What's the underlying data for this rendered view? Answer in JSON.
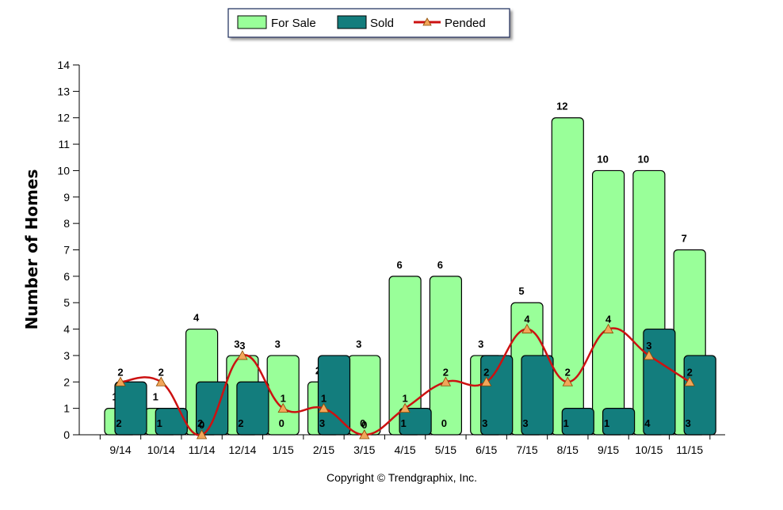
{
  "chart_data": {
    "type": "bar",
    "title": "",
    "xlabel": "",
    "ylabel": "Number of Homes",
    "ylim": [
      0,
      14
    ],
    "yticks": [
      0,
      1,
      2,
      3,
      4,
      5,
      6,
      7,
      8,
      9,
      10,
      11,
      12,
      13,
      14
    ],
    "grid": false,
    "legend_position": "top-center",
    "categories": [
      "9/14",
      "10/14",
      "11/14",
      "12/14",
      "1/15",
      "2/15",
      "3/15",
      "4/15",
      "5/15",
      "6/15",
      "7/15",
      "8/15",
      "9/15",
      "10/15",
      "11/15"
    ],
    "series": [
      {
        "name": "For Sale",
        "type": "bar",
        "values": [
          1,
          1,
          4,
          3,
          3,
          2,
          3,
          6,
          6,
          3,
          5,
          12,
          10,
          10,
          7
        ]
      },
      {
        "name": "Sold",
        "type": "bar",
        "values": [
          2,
          1,
          2,
          2,
          0,
          3,
          0,
          1,
          0,
          3,
          3,
          1,
          1,
          4,
          3
        ]
      },
      {
        "name": "Pended",
        "type": "line",
        "values": [
          2,
          2,
          0,
          3,
          1,
          1,
          0,
          1,
          2,
          2,
          4,
          2,
          4,
          3,
          2
        ]
      }
    ],
    "colors": {
      "for_sale": "#99ff99",
      "sold": "#137d7d",
      "pended": "#cc1111",
      "marker": "#f2a65a"
    },
    "footer": "Copyright © Trendgraphix, Inc."
  }
}
